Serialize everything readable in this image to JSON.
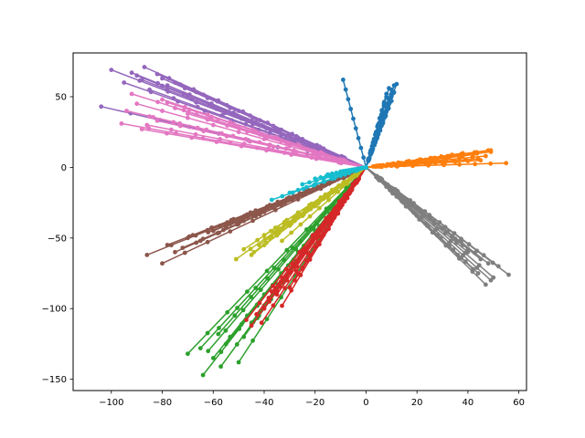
{
  "chart_data": {
    "type": "line",
    "title": "",
    "xlabel": "",
    "ylabel": "",
    "xlim": [
      -115,
      63
    ],
    "ylim": [
      -158,
      81
    ],
    "xticks": [
      -100,
      -80,
      -60,
      -40,
      -20,
      0,
      20,
      40,
      60
    ],
    "yticks": [
      -150,
      -100,
      -50,
      0,
      50
    ],
    "x_tick_labels": [
      "−100",
      "−80",
      "−60",
      "−40",
      "−20",
      "0",
      "20",
      "40",
      "60"
    ],
    "y_tick_labels": [
      "−150",
      "−100",
      "−50",
      "0",
      "50"
    ],
    "grid": false,
    "legend": "none",
    "marker": "circle",
    "series": [
      {
        "color": "#1f77b4",
        "endpoints": [
          [
            9,
            56
          ],
          [
            10,
            55
          ],
          [
            11,
            58
          ],
          [
            8,
            52
          ],
          [
            10,
            50
          ],
          [
            9,
            48
          ],
          [
            11,
            53
          ],
          [
            12,
            59
          ],
          [
            7,
            45
          ],
          [
            8,
            40
          ],
          [
            10,
            47
          ],
          [
            -9,
            62
          ]
        ]
      },
      {
        "color": "#ff7f0e",
        "endpoints": [
          [
            48,
            12
          ],
          [
            49,
            11
          ],
          [
            55,
            3
          ],
          [
            47,
            8
          ],
          [
            45,
            5
          ],
          [
            38,
            10
          ],
          [
            30,
            7
          ],
          [
            49,
            12
          ],
          [
            44,
            6
          ],
          [
            35,
            4
          ],
          [
            25,
            5
          ],
          [
            42,
            9
          ]
        ]
      },
      {
        "color": "#2ca02c",
        "endpoints": [
          [
            -64,
            -147
          ],
          [
            -70,
            -132
          ],
          [
            -57,
            -141
          ],
          [
            -50,
            -138
          ],
          [
            -62,
            -130
          ],
          [
            -55,
            -125
          ],
          [
            -48,
            -120
          ],
          [
            -65,
            -128
          ],
          [
            -60,
            -135
          ],
          [
            -45,
            -110
          ],
          [
            -42,
            -105
          ],
          [
            -58,
            -118
          ]
        ]
      },
      {
        "color": "#d62728",
        "endpoints": [
          [
            -47,
            -108
          ],
          [
            -45,
            -112
          ],
          [
            -40,
            -100
          ],
          [
            -38,
            -95
          ],
          [
            -43,
            -104
          ],
          [
            -35,
            -90
          ],
          [
            -30,
            -85
          ],
          [
            -41,
            -110
          ],
          [
            -33,
            -98
          ],
          [
            -28,
            -80
          ],
          [
            -25,
            -72
          ],
          [
            -37,
            -88
          ]
        ]
      },
      {
        "color": "#9467bd",
        "endpoints": [
          [
            -100,
            69
          ],
          [
            -87,
            71
          ],
          [
            -95,
            60
          ],
          [
            -90,
            65
          ],
          [
            -80,
            63
          ],
          [
            -104,
            43
          ],
          [
            -85,
            55
          ],
          [
            -92,
            67
          ],
          [
            -78,
            58
          ],
          [
            -88,
            62
          ],
          [
            -82,
            66
          ],
          [
            -75,
            60
          ]
        ]
      },
      {
        "color": "#8c564b",
        "endpoints": [
          [
            -86,
            -62
          ],
          [
            -80,
            -68
          ],
          [
            -78,
            -55
          ],
          [
            -70,
            -50
          ],
          [
            -75,
            -60
          ],
          [
            -65,
            -52
          ],
          [
            -60,
            -45
          ],
          [
            -72,
            -57
          ],
          [
            -68,
            -48
          ],
          [
            -55,
            -42
          ],
          [
            -50,
            -38
          ],
          [
            -62,
            -46
          ]
        ]
      },
      {
        "color": "#e377c2",
        "endpoints": [
          [
            -96,
            31
          ],
          [
            -92,
            52
          ],
          [
            -94,
            40
          ],
          [
            -85,
            36
          ],
          [
            -90,
            45
          ],
          [
            -80,
            48
          ],
          [
            -88,
            27
          ],
          [
            -75,
            42
          ],
          [
            -82,
            33
          ],
          [
            -70,
            38
          ],
          [
            -78,
            46
          ],
          [
            -86,
            30
          ]
        ]
      },
      {
        "color": "#7f7f7f",
        "endpoints": [
          [
            56,
            -76
          ],
          [
            52,
            -70
          ],
          [
            47,
            -83
          ],
          [
            45,
            -65
          ],
          [
            50,
            -78
          ],
          [
            40,
            -60
          ],
          [
            42,
            -72
          ],
          [
            48,
            -68
          ],
          [
            38,
            -55
          ],
          [
            44,
            -75
          ],
          [
            36,
            -62
          ],
          [
            49,
            -80
          ]
        ]
      },
      {
        "color": "#bcbd22",
        "endpoints": [
          [
            -51,
            -65
          ],
          [
            -48,
            -58
          ],
          [
            -42,
            -55
          ],
          [
            -38,
            -50
          ],
          [
            -45,
            -62
          ],
          [
            -35,
            -45
          ],
          [
            -30,
            -40
          ],
          [
            -40,
            -48
          ],
          [
            -33,
            -52
          ],
          [
            -28,
            -38
          ],
          [
            -44,
            -60
          ],
          [
            -36,
            -46
          ]
        ]
      },
      {
        "color": "#17becf",
        "endpoints": [
          [
            -37,
            -23
          ],
          [
            -30,
            -18
          ],
          [
            -25,
            -12
          ],
          [
            -20,
            -8
          ],
          [
            -15,
            -5
          ],
          [
            -10,
            -3
          ]
        ]
      }
    ]
  }
}
